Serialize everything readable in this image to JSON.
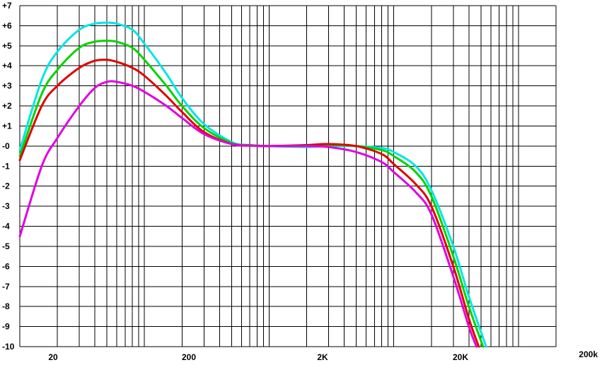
{
  "chart_data": {
    "type": "line",
    "title": "",
    "xlabel": "",
    "ylabel": "",
    "x_scale": "log",
    "xlim": [
      10,
      200000
    ],
    "ylim": [
      -10,
      7
    ],
    "grid": true,
    "legend": "none",
    "y_tick_labels": [
      "+7",
      "+6",
      "+5",
      "+4",
      "+3",
      "+2",
      "+1",
      "-0",
      "-1",
      "-2",
      "-3",
      "-4",
      "-5",
      "-6",
      "-7",
      "-8",
      "-9",
      "-10"
    ],
    "x_tick_labels": [
      {
        "x": 20,
        "label": "20"
      },
      {
        "x": 200,
        "label": "200"
      },
      {
        "x": 2000,
        "label": "2K"
      },
      {
        "x": 20000,
        "label": "20K"
      },
      {
        "x": 200000,
        "label": "200k"
      }
    ],
    "series": [
      {
        "color": "#00e5e5",
        "points": [
          [
            10,
            -0.2
          ],
          [
            15,
            3.3
          ],
          [
            20,
            4.7
          ],
          [
            30,
            5.8
          ],
          [
            40,
            6.1
          ],
          [
            50,
            6.15
          ],
          [
            60,
            6.1
          ],
          [
            80,
            5.8
          ],
          [
            100,
            5.1
          ],
          [
            150,
            3.6
          ],
          [
            200,
            2.4
          ],
          [
            300,
            1.1
          ],
          [
            500,
            0.2
          ],
          [
            700,
            0.05
          ],
          [
            1000,
            0.0
          ],
          [
            2000,
            -0.05
          ],
          [
            3000,
            0.0
          ],
          [
            5000,
            0.0
          ],
          [
            8000,
            -0.1
          ],
          [
            10000,
            -0.3
          ],
          [
            15000,
            -1.0
          ],
          [
            20000,
            -2.2
          ],
          [
            30000,
            -5.0
          ],
          [
            40000,
            -7.5
          ],
          [
            55000,
            -10
          ]
        ]
      },
      {
        "color": "#00d400",
        "points": [
          [
            10,
            -0.5
          ],
          [
            15,
            2.6
          ],
          [
            20,
            3.8
          ],
          [
            30,
            4.9
          ],
          [
            40,
            5.2
          ],
          [
            50,
            5.25
          ],
          [
            60,
            5.2
          ],
          [
            80,
            4.9
          ],
          [
            100,
            4.3
          ],
          [
            150,
            3.0
          ],
          [
            200,
            2.0
          ],
          [
            300,
            0.9
          ],
          [
            500,
            0.15
          ],
          [
            700,
            0.05
          ],
          [
            1000,
            0.0
          ],
          [
            2000,
            0.0
          ],
          [
            3000,
            0.05
          ],
          [
            5000,
            0.0
          ],
          [
            8000,
            -0.2
          ],
          [
            10000,
            -0.5
          ],
          [
            15000,
            -1.3
          ],
          [
            20000,
            -2.5
          ],
          [
            30000,
            -5.5
          ],
          [
            40000,
            -8.0
          ],
          [
            52000,
            -10
          ]
        ]
      },
      {
        "color": "#e00000",
        "points": [
          [
            10,
            -0.7
          ],
          [
            15,
            2.0
          ],
          [
            20,
            3.0
          ],
          [
            30,
            3.9
          ],
          [
            40,
            4.25
          ],
          [
            50,
            4.3
          ],
          [
            60,
            4.2
          ],
          [
            80,
            3.9
          ],
          [
            100,
            3.5
          ],
          [
            150,
            2.5
          ],
          [
            200,
            1.7
          ],
          [
            300,
            0.7
          ],
          [
            500,
            0.1
          ],
          [
            700,
            0.02
          ],
          [
            1000,
            0.0
          ],
          [
            2000,
            0.05
          ],
          [
            3000,
            0.1
          ],
          [
            5000,
            0.0
          ],
          [
            8000,
            -0.4
          ],
          [
            10000,
            -0.9
          ],
          [
            15000,
            -1.9
          ],
          [
            20000,
            -3.0
          ],
          [
            30000,
            -6.0
          ],
          [
            40000,
            -8.6
          ],
          [
            48000,
            -10
          ]
        ]
      },
      {
        "color": "#e000e0",
        "points": [
          [
            10,
            -4.5
          ],
          [
            15,
            -1.0
          ],
          [
            20,
            0.4
          ],
          [
            30,
            2.0
          ],
          [
            40,
            2.9
          ],
          [
            50,
            3.2
          ],
          [
            60,
            3.2
          ],
          [
            80,
            3.0
          ],
          [
            100,
            2.7
          ],
          [
            150,
            2.0
          ],
          [
            200,
            1.4
          ],
          [
            300,
            0.6
          ],
          [
            500,
            0.1
          ],
          [
            700,
            0.02
          ],
          [
            1000,
            0.0
          ],
          [
            2000,
            0.0
          ],
          [
            3000,
            -0.05
          ],
          [
            5000,
            -0.3
          ],
          [
            8000,
            -0.8
          ],
          [
            10000,
            -1.3
          ],
          [
            15000,
            -2.3
          ],
          [
            20000,
            -3.4
          ],
          [
            30000,
            -6.5
          ],
          [
            40000,
            -9.0
          ],
          [
            46000,
            -10
          ]
        ]
      }
    ]
  }
}
